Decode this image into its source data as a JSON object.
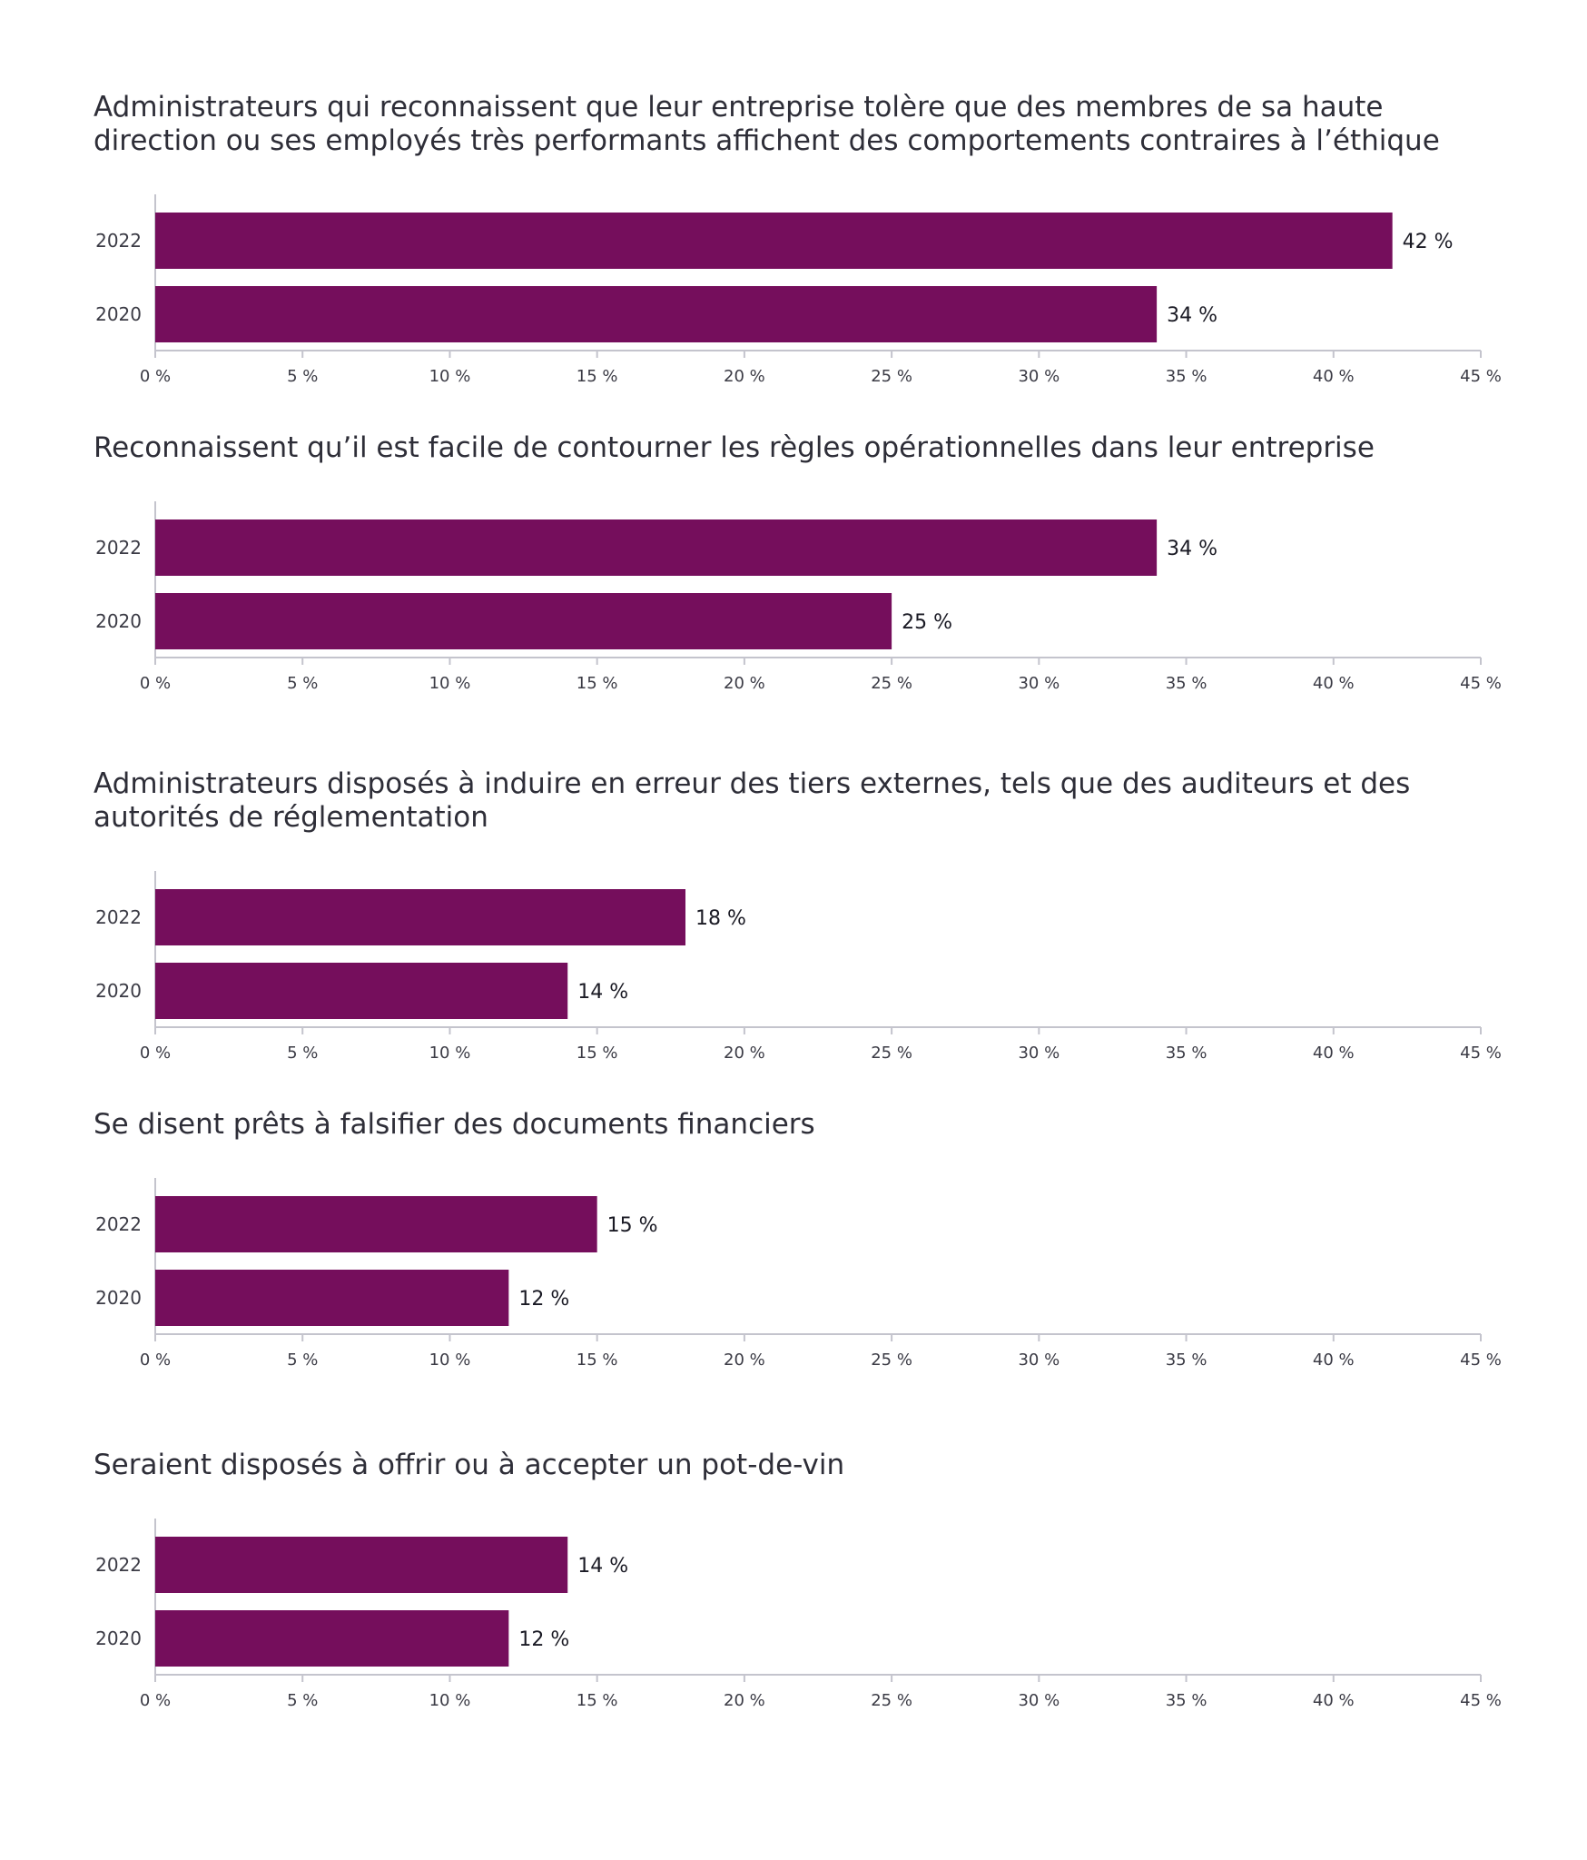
{
  "colors": {
    "bar": "#750e5c",
    "text": "#2e2e38",
    "axis": "#c4c4cd"
  },
  "chart_data": [
    {
      "type": "bar",
      "orientation": "horizontal",
      "title": "Administrateurs qui reconnaissent que leur entreprise tolère que des membres de sa haute direction ou ses employés très performants affichent des comportements contraires à l’éthique",
      "categories": [
        "2022",
        "2020"
      ],
      "values": [
        42,
        34
      ],
      "value_labels": [
        "42 %",
        "34 %"
      ],
      "xlim": [
        0,
        45
      ],
      "ticks": [
        0,
        5,
        10,
        15,
        20,
        25,
        30,
        35,
        40,
        45
      ],
      "tick_labels": [
        "0 %",
        "5 %",
        "10 %",
        "15 %",
        "20 %",
        "25 %",
        "30 %",
        "35 %",
        "40 %",
        "45 %"
      ],
      "grid": false,
      "legend": "none"
    },
    {
      "type": "bar",
      "orientation": "horizontal",
      "title": "Reconnaissent qu’il est facile de contourner les règles opérationnelles dans leur entreprise",
      "categories": [
        "2022",
        "2020"
      ],
      "values": [
        34,
        25
      ],
      "value_labels": [
        "34 %",
        "25 %"
      ],
      "xlim": [
        0,
        45
      ],
      "ticks": [
        0,
        5,
        10,
        15,
        20,
        25,
        30,
        35,
        40,
        45
      ],
      "tick_labels": [
        "0 %",
        "5 %",
        "10 %",
        "15 %",
        "20 %",
        "25 %",
        "30 %",
        "35 %",
        "40 %",
        "45 %"
      ],
      "grid": false,
      "legend": "none"
    },
    {
      "type": "bar",
      "orientation": "horizontal",
      "title": "Administrateurs disposés à induire en erreur des tiers externes, tels que des auditeurs et des autorités de réglementation",
      "categories": [
        "2022",
        "2020"
      ],
      "values": [
        18,
        14
      ],
      "value_labels": [
        "18 %",
        "14 %"
      ],
      "xlim": [
        0,
        45
      ],
      "ticks": [
        0,
        5,
        10,
        15,
        20,
        25,
        30,
        35,
        40,
        45
      ],
      "tick_labels": [
        "0 %",
        "5 %",
        "10 %",
        "15 %",
        "20 %",
        "25 %",
        "30 %",
        "35 %",
        "40 %",
        "45 %"
      ],
      "grid": false,
      "legend": "none"
    },
    {
      "type": "bar",
      "orientation": "horizontal",
      "title": "Se disent prêts à falsifier des documents financiers",
      "categories": [
        "2022",
        "2020"
      ],
      "values": [
        15,
        12
      ],
      "value_labels": [
        "15 %",
        "12 %"
      ],
      "xlim": [
        0,
        45
      ],
      "ticks": [
        0,
        5,
        10,
        15,
        20,
        25,
        30,
        35,
        40,
        45
      ],
      "tick_labels": [
        "0 %",
        "5 %",
        "10 %",
        "15 %",
        "20 %",
        "25 %",
        "30 %",
        "35 %",
        "40 %",
        "45 %"
      ],
      "grid": false,
      "legend": "none"
    },
    {
      "type": "bar",
      "orientation": "horizontal",
      "title": "Seraient disposés à offrir ou à accepter un pot-de-vin",
      "categories": [
        "2022",
        "2020"
      ],
      "values": [
        14,
        12
      ],
      "value_labels": [
        "14 %",
        "12 %"
      ],
      "xlim": [
        0,
        45
      ],
      "ticks": [
        0,
        5,
        10,
        15,
        20,
        25,
        30,
        35,
        40,
        45
      ],
      "tick_labels": [
        "0 %",
        "5 %",
        "10 %",
        "15 %",
        "20 %",
        "25 %",
        "30 %",
        "35 %",
        "40 %",
        "45 %"
      ],
      "grid": false,
      "legend": "none"
    }
  ]
}
